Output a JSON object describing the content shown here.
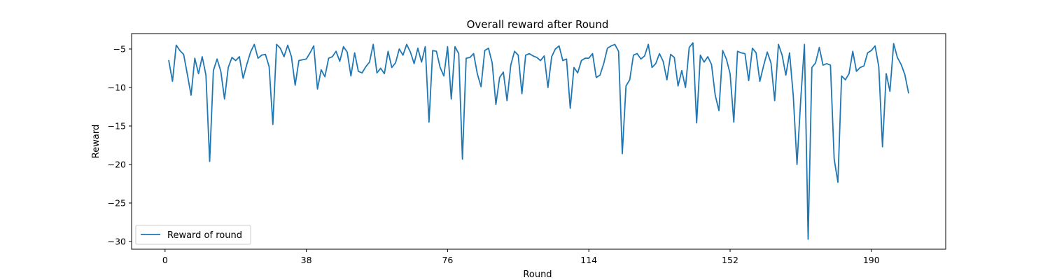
{
  "chart_data": {
    "type": "line",
    "title": "Overall reward after Round",
    "xlabel": "Round",
    "ylabel": "Reward",
    "xlim": [
      -9,
      210
    ],
    "ylim": [
      -31,
      -3
    ],
    "xticks": [
      0,
      38,
      76,
      114,
      152,
      190
    ],
    "xtick_labels": [
      "0",
      "38",
      "76",
      "114",
      "152",
      "190"
    ],
    "yticks": [
      -5,
      -10,
      -15,
      -20,
      -25,
      -30
    ],
    "ytick_labels": [
      "−5",
      "−10",
      "−15",
      "−20",
      "−25",
      "−30"
    ],
    "grid": false,
    "legend_position": "lower-left",
    "series": [
      {
        "name": "Reward of round",
        "color": "#1f77b4",
        "x": [
          1,
          2,
          3,
          4,
          5,
          6,
          7,
          8,
          9,
          10,
          11,
          12,
          13,
          14,
          15,
          16,
          17,
          18,
          19,
          20,
          21,
          22,
          23,
          24,
          25,
          26,
          27,
          28,
          29,
          30,
          31,
          32,
          33,
          34,
          35,
          36,
          37,
          38,
          39,
          40,
          41,
          42,
          43,
          44,
          45,
          46,
          47,
          48,
          49,
          50,
          51,
          52,
          53,
          54,
          55,
          56,
          57,
          58,
          59,
          60,
          61,
          62,
          63,
          64,
          65,
          66,
          67,
          68,
          69,
          70,
          71,
          72,
          73,
          74,
          75,
          76,
          77,
          78,
          79,
          80,
          81,
          82,
          83,
          84,
          85,
          86,
          87,
          88,
          89,
          90,
          91,
          92,
          93,
          94,
          95,
          96,
          97,
          98,
          99,
          100,
          101,
          102,
          103,
          104,
          105,
          106,
          107,
          108,
          109,
          110,
          111,
          112,
          113,
          114,
          115,
          116,
          117,
          118,
          119,
          120,
          121,
          122,
          123,
          124,
          125,
          126,
          127,
          128,
          129,
          130,
          131,
          132,
          133,
          134,
          135,
          136,
          137,
          138,
          139,
          140,
          141,
          142,
          143,
          144,
          145,
          146,
          147,
          148,
          149,
          150,
          151,
          152,
          153,
          154,
          155,
          156,
          157,
          158,
          159,
          160,
          161,
          162,
          163,
          164,
          165,
          166,
          167,
          168,
          169,
          170,
          171,
          172,
          173,
          174,
          175,
          176,
          177,
          178,
          179,
          180,
          181,
          182,
          183,
          184,
          185,
          186,
          187,
          188,
          189,
          190,
          191,
          192,
          193,
          194,
          195,
          196,
          197,
          198,
          199,
          200
        ],
        "y": [
          -6.5,
          -9.2,
          -4.5,
          -5.2,
          -5.7,
          -8.3,
          -11.0,
          -6.2,
          -8.2,
          -6.0,
          -8.4,
          -19.6,
          -7.8,
          -6.3,
          -7.9,
          -11.5,
          -7.4,
          -6.1,
          -6.5,
          -6.0,
          -8.8,
          -7.0,
          -5.4,
          -4.4,
          -6.2,
          -5.8,
          -5.7,
          -7.3,
          -14.8,
          -4.4,
          -4.9,
          -6.0,
          -4.5,
          -6.0,
          -9.7,
          -6.5,
          -6.4,
          -6.3,
          -5.5,
          -4.6,
          -10.2,
          -7.7,
          -8.6,
          -6.2,
          -6.0,
          -5.3,
          -6.6,
          -4.7,
          -5.4,
          -8.5,
          -5.5,
          -7.9,
          -8.1,
          -7.3,
          -6.7,
          -4.4,
          -8.1,
          -7.5,
          -8.2,
          -5.3,
          -7.4,
          -6.8,
          -5.0,
          -5.8,
          -4.4,
          -5.4,
          -6.9,
          -4.9,
          -6.7,
          -4.7,
          -14.5,
          -5.2,
          -5.3,
          -7.4,
          -8.5,
          -4.7,
          -11.5,
          -4.7,
          -5.6,
          -19.3,
          -6.2,
          -6.1,
          -5.6,
          -8.2,
          -9.9,
          -5.2,
          -4.9,
          -6.8,
          -12.2,
          -8.7,
          -8.0,
          -11.7,
          -7.1,
          -5.3,
          -5.8,
          -10.8,
          -5.8,
          -5.6,
          -5.9,
          -6.1,
          -6.5,
          -5.9,
          -10.0,
          -6.0,
          -5.0,
          -4.6,
          -6.5,
          -6.3,
          -12.7,
          -7.4,
          -8.1,
          -6.5,
          -6.2,
          -6.2,
          -5.6,
          -8.7,
          -8.4,
          -6.9,
          -4.9,
          -4.6,
          -4.4,
          -5.3,
          -18.6,
          -9.8,
          -9.0,
          -5.8,
          -5.6,
          -6.3,
          -5.9,
          -4.4,
          -7.4,
          -6.9,
          -5.6,
          -6.6,
          -9.0,
          -5.7,
          -6.1,
          -9.8,
          -7.8,
          -10.0,
          -4.8,
          -4.2,
          -14.6,
          -5.8,
          -6.7,
          -6.0,
          -7.0,
          -11.0,
          -13.0,
          -5.2,
          -6.3,
          -8.2,
          -14.5,
          -5.3,
          -5.5,
          -5.6,
          -9.1,
          -4.9,
          -5.5,
          -9.2,
          -7.2,
          -5.4,
          -6.8,
          -11.7,
          -4.4,
          -5.8,
          -8.4,
          -5.5,
          -11.1,
          -20.0,
          -11.6,
          -4.4,
          -29.7,
          -7.4,
          -6.8,
          -4.8,
          -7.1,
          -6.9,
          -7.1,
          -19.3,
          -22.3,
          -8.5,
          -9.0,
          -8.2,
          -5.3,
          -7.9,
          -7.4,
          -7.2,
          -5.5,
          -5.2,
          -4.6,
          -7.3,
          -17.7,
          -8.2,
          -10.5,
          -4.3,
          -6.1,
          -7.0,
          -8.3,
          -10.7
        ]
      }
    ]
  }
}
